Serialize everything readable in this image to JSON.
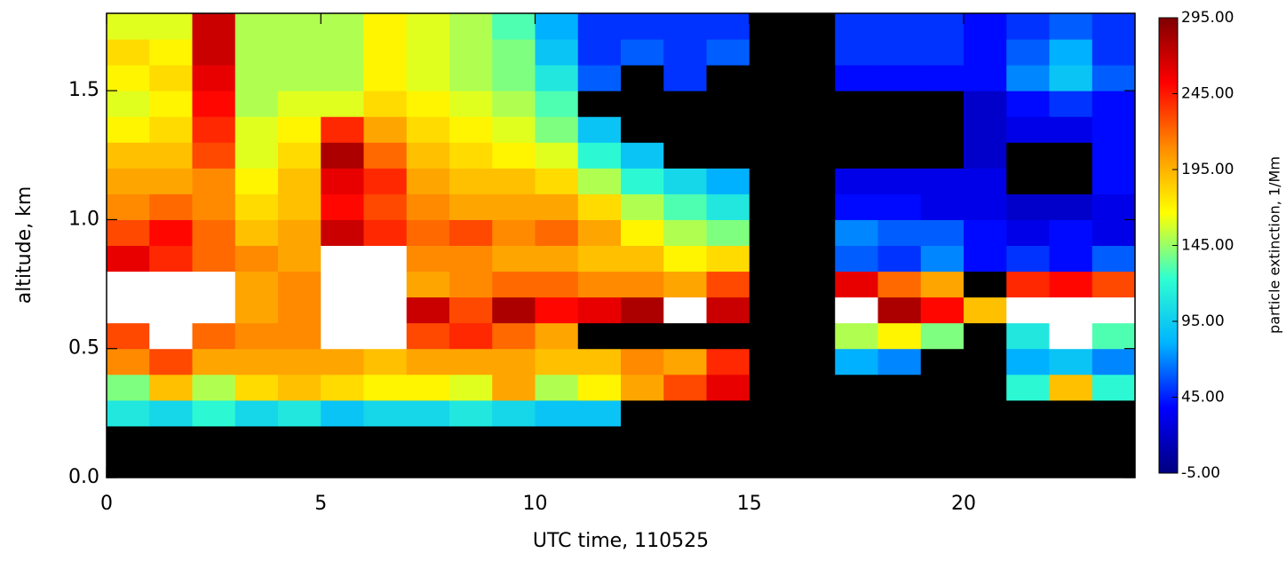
{
  "chart_data": {
    "type": "heatmap",
    "xlabel": "UTC time, 110525",
    "ylabel": "altitude, km",
    "zlabel": "particle extinction, 1/Mm",
    "xbins": [
      0,
      1,
      2,
      3,
      4,
      5,
      6,
      7,
      8,
      9,
      10,
      11,
      12,
      13,
      14,
      15,
      16,
      17,
      18,
      19,
      20,
      21,
      22,
      23,
      24
    ],
    "ybins": [
      0,
      0.1,
      0.2,
      0.3,
      0.4,
      0.5,
      0.6,
      0.7,
      0.8,
      0.9,
      1.0,
      1.1,
      1.2,
      1.3,
      1.4,
      1.5,
      1.6,
      1.7,
      1.8
    ],
    "values": [
      [
        null,
        null,
        null,
        null,
        null,
        null,
        null,
        null,
        null,
        null,
        null,
        null,
        null,
        null,
        null,
        null,
        null,
        null,
        null,
        null,
        null,
        null,
        null,
        null
      ],
      [
        null,
        null,
        null,
        null,
        null,
        null,
        null,
        null,
        null,
        null,
        null,
        null,
        null,
        null,
        null,
        null,
        null,
        null,
        null,
        null,
        null,
        null,
        null,
        null
      ],
      [
        110,
        100,
        120,
        100,
        110,
        90,
        100,
        100,
        110,
        100,
        90,
        90,
        null,
        null,
        null,
        null,
        null,
        null,
        null,
        null,
        null,
        null,
        null,
        null
      ],
      [
        140,
        190,
        150,
        180,
        190,
        180,
        170,
        170,
        160,
        200,
        150,
        170,
        200,
        230,
        260,
        null,
        null,
        null,
        null,
        null,
        null,
        120,
        190,
        120
      ],
      [
        210,
        230,
        200,
        200,
        200,
        200,
        190,
        200,
        200,
        200,
        190,
        190,
        210,
        200,
        240,
        null,
        null,
        80,
        70,
        null,
        null,
        80,
        90,
        70
      ],
      [
        230,
        320,
        220,
        210,
        210,
        320,
        320,
        230,
        240,
        220,
        200,
        null,
        null,
        null,
        null,
        null,
        null,
        150,
        170,
        140,
        null,
        110,
        320,
        130
      ],
      [
        320,
        320,
        320,
        200,
        210,
        320,
        320,
        270,
        230,
        280,
        250,
        260,
        280,
        320,
        270,
        null,
        null,
        320,
        280,
        250,
        190,
        320,
        320,
        320
      ],
      [
        320,
        320,
        320,
        200,
        210,
        320,
        320,
        200,
        210,
        220,
        220,
        210,
        210,
        200,
        230,
        null,
        null,
        260,
        220,
        200,
        null,
        240,
        250,
        230
      ],
      [
        260,
        240,
        220,
        210,
        200,
        320,
        320,
        210,
        210,
        200,
        200,
        190,
        190,
        170,
        180,
        null,
        null,
        60,
        50,
        70,
        40,
        50,
        40,
        60
      ],
      [
        230,
        250,
        220,
        190,
        200,
        270,
        240,
        220,
        230,
        210,
        220,
        200,
        170,
        150,
        140,
        null,
        null,
        70,
        60,
        60,
        40,
        30,
        40,
        30
      ],
      [
        210,
        220,
        210,
        180,
        190,
        250,
        230,
        210,
        200,
        200,
        200,
        180,
        150,
        130,
        110,
        null,
        null,
        40,
        40,
        30,
        30,
        20,
        20,
        30
      ],
      [
        200,
        200,
        210,
        170,
        190,
        260,
        240,
        200,
        190,
        190,
        180,
        150,
        120,
        100,
        80,
        null,
        null,
        30,
        30,
        30,
        30,
        null,
        null,
        40
      ],
      [
        190,
        190,
        230,
        160,
        180,
        280,
        220,
        190,
        180,
        170,
        160,
        120,
        90,
        null,
        null,
        null,
        null,
        null,
        null,
        null,
        20,
        null,
        null,
        40
      ],
      [
        170,
        180,
        240,
        160,
        170,
        240,
        200,
        180,
        170,
        160,
        140,
        90,
        null,
        null,
        null,
        null,
        null,
        null,
        null,
        null,
        20,
        30,
        30,
        40
      ],
      [
        160,
        170,
        250,
        150,
        160,
        160,
        180,
        170,
        160,
        150,
        130,
        null,
        null,
        null,
        null,
        null,
        null,
        null,
        null,
        null,
        20,
        40,
        50,
        40
      ],
      [
        170,
        180,
        260,
        150,
        150,
        150,
        170,
        160,
        150,
        140,
        110,
        60,
        null,
        50,
        null,
        null,
        null,
        40,
        40,
        40,
        40,
        70,
        90,
        60
      ],
      [
        180,
        170,
        270,
        150,
        150,
        150,
        170,
        160,
        150,
        140,
        90,
        50,
        60,
        50,
        60,
        null,
        null,
        50,
        50,
        50,
        40,
        60,
        80,
        50
      ],
      [
        160,
        160,
        270,
        150,
        150,
        150,
        170,
        160,
        150,
        130,
        80,
        50,
        50,
        50,
        50,
        null,
        null,
        50,
        50,
        50,
        40,
        50,
        60,
        50
      ]
    ],
    "xlim": [
      0,
      24
    ],
    "ylim": [
      0,
      1.8
    ],
    "zlim": [
      -5,
      295
    ],
    "xticks": [
      0,
      5,
      10,
      15,
      20
    ],
    "yticks": [
      {
        "value": 0,
        "label": "0.0"
      },
      0.5,
      {
        "value": 1,
        "label": "1.0"
      },
      1.5
    ],
    "zticks": [
      {
        "value": -5,
        "label": "-5.00"
      },
      {
        "value": 45,
        "label": "45.00"
      },
      {
        "value": 95,
        "label": "95.00"
      },
      {
        "value": 145,
        "label": "145.00"
      },
      {
        "value": 195,
        "label": "195.00"
      },
      {
        "value": 245,
        "label": "245.00"
      },
      {
        "value": 295,
        "label": "295.00"
      }
    ],
    "colormap": [
      "#00007f",
      "#0000ff",
      "#00b4ff",
      "#30ffd0",
      "#ffff00",
      "#ff8c00",
      "#ff0000",
      "#7f0000"
    ],
    "missing_color": "#000000",
    "over_color": "#ffffff"
  }
}
